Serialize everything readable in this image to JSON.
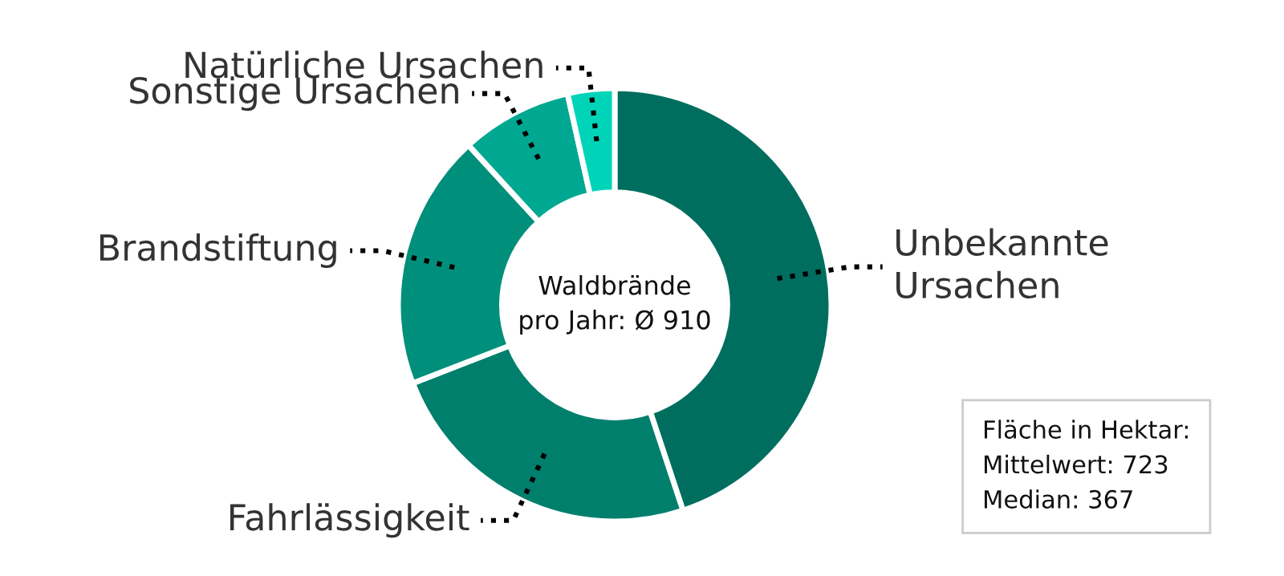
{
  "chart_data": {
    "type": "donut",
    "categories": [
      "Unbekannte\nUrsachen",
      "Fahrlässigkeit",
      "Brandstiftung",
      "Sonstige Ursachen",
      "Natürliche Ursachen"
    ],
    "values": [
      44.9,
      24.2,
      19.1,
      8.3,
      3.5
    ],
    "colors": [
      "#006e5f",
      "#007f6d",
      "#008f7b",
      "#00a892",
      "#00d4b8"
    ],
    "title": "Waldbrände\npro Jahr: Ø 910",
    "annotations": [
      "Fläche in Hektar:\nMittelwert: 723\nMedian: 367"
    ],
    "legend": false
  }
}
